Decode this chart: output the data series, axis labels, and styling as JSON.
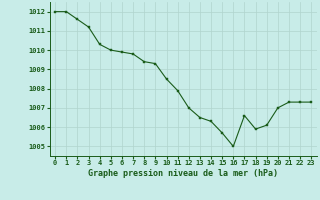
{
  "x": [
    0,
    1,
    2,
    3,
    4,
    5,
    6,
    7,
    8,
    9,
    10,
    11,
    12,
    13,
    14,
    15,
    16,
    17,
    18,
    19,
    20,
    21,
    22,
    23
  ],
  "y": [
    1012.0,
    1012.0,
    1011.6,
    1011.2,
    1010.3,
    1010.0,
    1009.9,
    1009.8,
    1009.4,
    1009.3,
    1008.5,
    1007.9,
    1007.0,
    1006.5,
    1006.3,
    1005.7,
    1005.0,
    1006.6,
    1005.9,
    1006.1,
    1007.0,
    1007.3,
    1007.3,
    1007.3
  ],
  "line_color": "#1a5c1a",
  "marker_color": "#1a5c1a",
  "bg_color": "#c8ece8",
  "grid_color": "#b0d4ce",
  "text_color": "#1a5c1a",
  "xlabel": "Graphe pression niveau de la mer (hPa)",
  "ylim": [
    1004.5,
    1012.5
  ],
  "yticks": [
    1005,
    1006,
    1007,
    1008,
    1009,
    1010,
    1011,
    1012
  ],
  "xticks": [
    0,
    1,
    2,
    3,
    4,
    5,
    6,
    7,
    8,
    9,
    10,
    11,
    12,
    13,
    14,
    15,
    16,
    17,
    18,
    19,
    20,
    21,
    22,
    23
  ],
  "tick_fontsize": 5.0,
  "xlabel_fontsize": 6.0
}
